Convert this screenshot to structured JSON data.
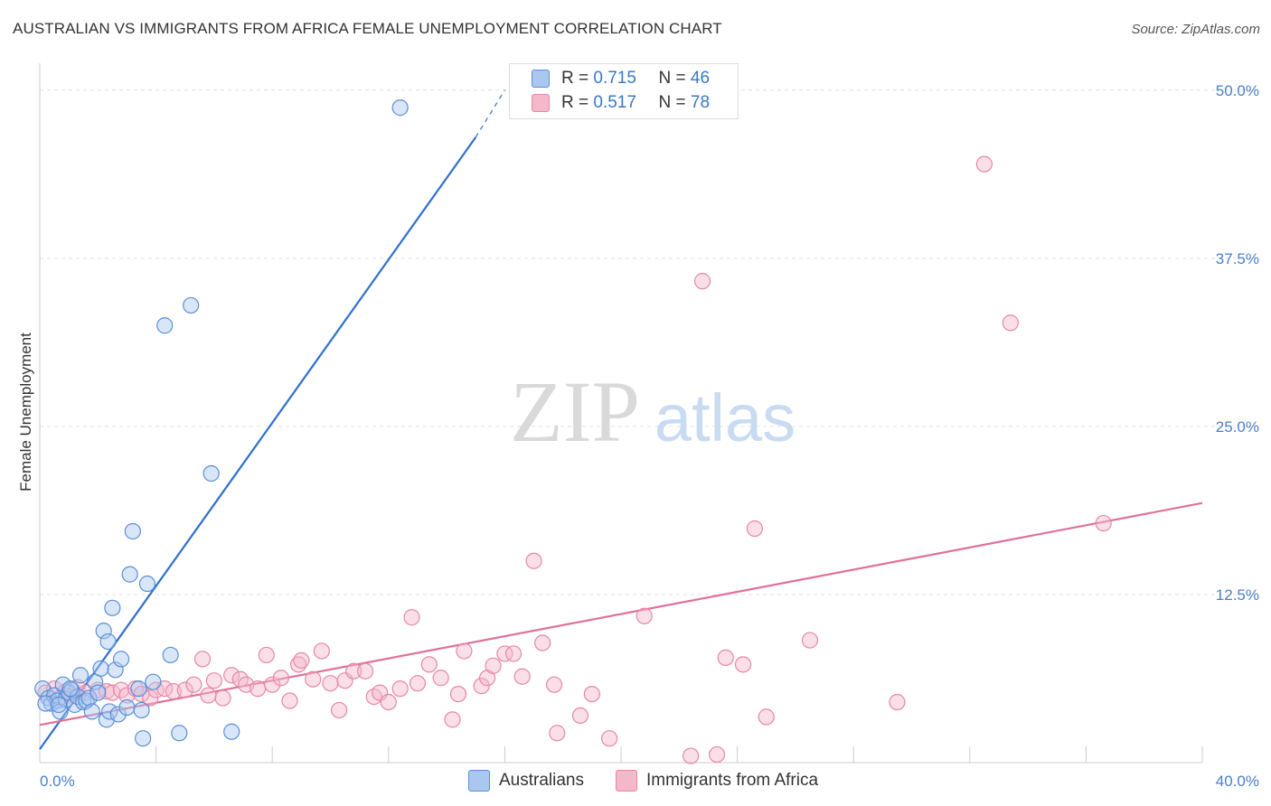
{
  "title": "AUSTRALIAN VS IMMIGRANTS FROM AFRICA FEMALE UNEMPLOYMENT CORRELATION CHART",
  "source": "Source: ZipAtlas.com",
  "watermark": {
    "zip": "ZIP",
    "atlas": "atlas"
  },
  "legend": {
    "r_label": "R =",
    "n_label": "N =",
    "series": [
      {
        "r": "0.715",
        "n": "46"
      },
      {
        "r": "0.517",
        "n": "78"
      }
    ]
  },
  "colors": {
    "blue_fill": "#aac8ef",
    "blue_stroke": "#5b8fd6",
    "blue_line": "#2e6fd0",
    "pink_fill": "#f5b8cb",
    "pink_stroke": "#e688a6",
    "pink_line": "#e0709a",
    "tick_label": "#4a7fc9",
    "grid": "#e2e2e2"
  },
  "chart_data": {
    "type": "scatter",
    "title": "AUSTRALIAN VS IMMIGRANTS FROM AFRICA FEMALE UNEMPLOYMENT CORRELATION CHART",
    "xlabel": "",
    "ylabel": "Female Unemployment",
    "xlim": [
      0,
      40
    ],
    "ylim": [
      0,
      52
    ],
    "x_tick_labels": [
      "0.0%",
      "40.0%"
    ],
    "y_ticks": [
      12.5,
      25.0,
      37.5,
      50.0
    ],
    "y_tick_labels": [
      "12.5%",
      "25.0%",
      "37.5%",
      "50.0%"
    ],
    "series": [
      {
        "name": "Australians",
        "color": "blue",
        "points": [
          [
            0.1,
            5.5
          ],
          [
            0.3,
            4.8
          ],
          [
            0.4,
            4.4
          ],
          [
            0.5,
            5.0
          ],
          [
            0.6,
            4.6
          ],
          [
            0.7,
            3.8
          ],
          [
            0.8,
            5.8
          ],
          [
            0.9,
            4.7
          ],
          [
            1.0,
            5.2
          ],
          [
            1.1,
            5.4
          ],
          [
            1.2,
            4.3
          ],
          [
            1.3,
            4.9
          ],
          [
            1.4,
            6.5
          ],
          [
            1.5,
            4.5
          ],
          [
            1.6,
            4.6
          ],
          [
            1.7,
            4.8
          ],
          [
            1.8,
            3.8
          ],
          [
            1.9,
            6.0
          ],
          [
            2.0,
            5.2
          ],
          [
            2.1,
            7.0
          ],
          [
            2.2,
            9.8
          ],
          [
            2.3,
            3.2
          ],
          [
            2.35,
            9.0
          ],
          [
            2.4,
            3.8
          ],
          [
            2.5,
            11.5
          ],
          [
            2.6,
            6.9
          ],
          [
            2.7,
            3.6
          ],
          [
            2.8,
            7.7
          ],
          [
            3.0,
            4.1
          ],
          [
            3.1,
            14.0
          ],
          [
            3.2,
            17.2
          ],
          [
            3.4,
            5.5
          ],
          [
            3.5,
            3.9
          ],
          [
            3.55,
            1.8
          ],
          [
            3.7,
            13.3
          ],
          [
            3.9,
            6.0
          ],
          [
            4.3,
            32.5
          ],
          [
            4.5,
            8.0
          ],
          [
            4.8,
            2.2
          ],
          [
            5.2,
            34.0
          ],
          [
            5.9,
            21.5
          ],
          [
            6.6,
            2.3
          ],
          [
            12.4,
            48.7
          ],
          [
            0.2,
            4.4
          ],
          [
            1.05,
            5.5
          ],
          [
            0.65,
            4.3
          ]
        ]
      },
      {
        "name": "Immigrants from Africa",
        "color": "pink",
        "points": [
          [
            0.2,
            5.2
          ],
          [
            0.5,
            5.5
          ],
          [
            0.7,
            4.8
          ],
          [
            0.9,
            5.3
          ],
          [
            1.1,
            5.0
          ],
          [
            1.3,
            5.6
          ],
          [
            1.6,
            5.2
          ],
          [
            2.0,
            5.4
          ],
          [
            2.3,
            5.3
          ],
          [
            2.5,
            5.2
          ],
          [
            2.8,
            5.4
          ],
          [
            3.0,
            5.0
          ],
          [
            3.3,
            5.5
          ],
          [
            3.5,
            5.1
          ],
          [
            3.8,
            4.8
          ],
          [
            4.0,
            5.4
          ],
          [
            4.3,
            5.5
          ],
          [
            4.6,
            5.3
          ],
          [
            5.0,
            5.4
          ],
          [
            5.3,
            5.8
          ],
          [
            5.6,
            7.7
          ],
          [
            5.8,
            5.0
          ],
          [
            6.0,
            6.1
          ],
          [
            6.3,
            4.8
          ],
          [
            6.6,
            6.5
          ],
          [
            6.9,
            6.2
          ],
          [
            7.1,
            5.8
          ],
          [
            7.5,
            5.5
          ],
          [
            7.8,
            8.0
          ],
          [
            8.0,
            5.8
          ],
          [
            8.3,
            6.3
          ],
          [
            8.6,
            4.6
          ],
          [
            8.9,
            7.3
          ],
          [
            9.0,
            7.6
          ],
          [
            9.4,
            6.2
          ],
          [
            9.7,
            8.3
          ],
          [
            10.0,
            5.9
          ],
          [
            10.3,
            3.9
          ],
          [
            10.5,
            6.1
          ],
          [
            10.8,
            6.8
          ],
          [
            11.2,
            6.8
          ],
          [
            11.5,
            4.9
          ],
          [
            11.7,
            5.2
          ],
          [
            12.0,
            4.5
          ],
          [
            12.4,
            5.5
          ],
          [
            12.8,
            10.8
          ],
          [
            13.0,
            5.9
          ],
          [
            13.4,
            7.3
          ],
          [
            13.8,
            6.3
          ],
          [
            14.2,
            3.2
          ],
          [
            14.4,
            5.1
          ],
          [
            14.6,
            8.3
          ],
          [
            15.2,
            5.7
          ],
          [
            15.4,
            6.3
          ],
          [
            15.6,
            7.2
          ],
          [
            16.0,
            8.1
          ],
          [
            16.3,
            8.1
          ],
          [
            16.6,
            6.4
          ],
          [
            17.0,
            15.0
          ],
          [
            17.3,
            8.9
          ],
          [
            17.7,
            5.8
          ],
          [
            17.8,
            2.2
          ],
          [
            18.6,
            3.5
          ],
          [
            19.0,
            5.1
          ],
          [
            19.6,
            1.8
          ],
          [
            20.8,
            10.9
          ],
          [
            22.4,
            0.5
          ],
          [
            22.8,
            35.8
          ],
          [
            23.3,
            0.6
          ],
          [
            23.6,
            7.8
          ],
          [
            24.2,
            7.3
          ],
          [
            24.6,
            17.4
          ],
          [
            25.0,
            3.4
          ],
          [
            26.5,
            9.1
          ],
          [
            29.5,
            4.5
          ],
          [
            32.5,
            44.5
          ],
          [
            33.4,
            32.7
          ],
          [
            36.6,
            17.8
          ]
        ]
      }
    ],
    "trend_lines": [
      {
        "series": "Australians",
        "x": [
          0,
          15.0
        ],
        "y": [
          1.0,
          46.5
        ],
        "dashed_to": [
          16.0,
          50.0
        ]
      },
      {
        "series": "Immigrants from Africa",
        "x": [
          0,
          40.0
        ],
        "y": [
          2.8,
          19.3
        ]
      }
    ]
  },
  "bottom_legend": {
    "items": [
      {
        "label": "Australians"
      },
      {
        "label": "Immigrants from Africa"
      }
    ]
  }
}
